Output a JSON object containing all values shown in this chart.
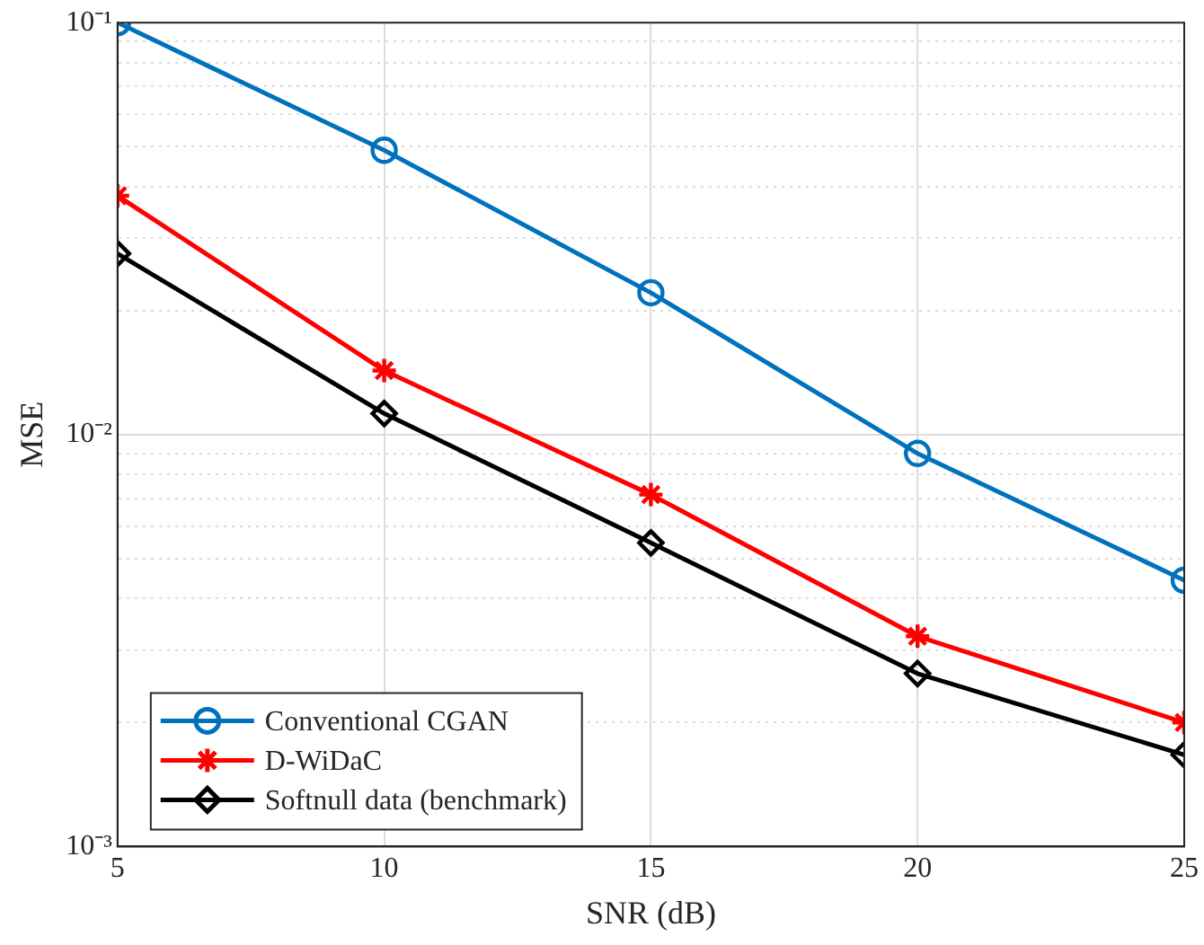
{
  "chart_data": {
    "type": "line",
    "xlabel": "SNR (dB)",
    "ylabel": "MSE",
    "x": [
      5,
      10,
      15,
      20,
      25
    ],
    "xlim": [
      5,
      25
    ],
    "xticks": [
      5,
      10,
      15,
      20,
      25
    ],
    "log": "y",
    "ylim": [
      0.001,
      0.1
    ],
    "yticks": [
      {
        "value": 0.001,
        "label": "10⁻³"
      },
      {
        "value": 0.002,
        "label": null
      },
      {
        "value": 0.003,
        "label": null
      },
      {
        "value": 0.004,
        "label": null
      },
      {
        "value": 0.005,
        "label": null
      },
      {
        "value": 0.006,
        "label": null
      },
      {
        "value": 0.007,
        "label": null
      },
      {
        "value": 0.008,
        "label": null
      },
      {
        "value": 0.009,
        "label": null
      },
      {
        "value": 0.01,
        "label": "10⁻²"
      },
      {
        "value": 0.02,
        "label": null
      },
      {
        "value": 0.03,
        "label": null
      },
      {
        "value": 0.04,
        "label": null
      },
      {
        "value": 0.05,
        "label": null
      },
      {
        "value": 0.06,
        "label": null
      },
      {
        "value": 0.07,
        "label": null
      },
      {
        "value": 0.08,
        "label": null
      },
      {
        "value": 0.09,
        "label": null
      },
      {
        "value": 0.1,
        "label": "10⁻¹"
      }
    ],
    "grid": true,
    "legend": "bottom left",
    "line_style": "solid",
    "series": [
      {
        "name": "Conventional CGAN",
        "color": "#0072bd",
        "marker": "circle",
        "values": [
          0.1,
          0.049,
          0.0221,
          0.009,
          0.00443
        ]
      },
      {
        "name": "D-WiDaC",
        "color": "#ff0000",
        "marker": "cross",
        "values": [
          0.038,
          0.0143,
          0.00715,
          0.00324,
          0.002
        ]
      },
      {
        "name": "Softnull data (benchmark)",
        "color": "#000000",
        "marker": "diamond",
        "values": [
          0.0275,
          0.01125,
          0.00546,
          0.00263,
          0.00167
        ]
      }
    ]
  }
}
